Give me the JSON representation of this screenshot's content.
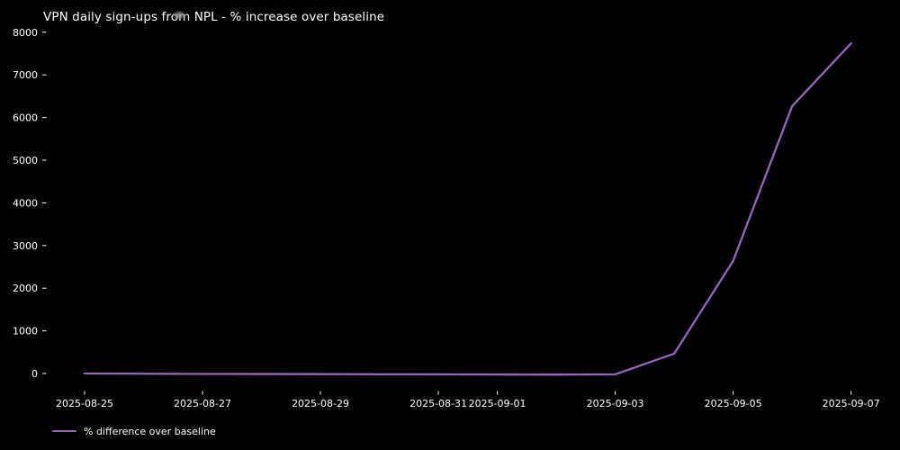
{
  "title": "VPN daily sign-ups from NPL - % increase over baseline",
  "legend": {
    "label": "% difference over baseline"
  },
  "colors": {
    "background": "#000000",
    "text": "#ffffff",
    "line": "#9467bd"
  },
  "chart_data": {
    "type": "line",
    "title": "VPN daily sign-ups from NPL - % increase over baseline",
    "xlabel": "",
    "ylabel": "",
    "x": [
      "2025-08-25",
      "2025-08-26",
      "2025-08-27",
      "2025-08-28",
      "2025-08-29",
      "2025-08-30",
      "2025-08-31",
      "2025-09-01",
      "2025-09-02",
      "2025-09-03",
      "2025-09-04",
      "2025-09-05",
      "2025-09-06",
      "2025-09-07"
    ],
    "series": [
      {
        "name": "% difference over baseline",
        "values": [
          0,
          -5,
          -10,
          -12,
          -15,
          -18,
          -20,
          -22,
          -25,
          -20,
          465,
          2640,
          6265,
          7740
        ]
      }
    ],
    "x_tick_labels": [
      "2025-08-25",
      "2025-08-27",
      "2025-08-29",
      "2025-08-31",
      "2025-09-01",
      "2025-09-03",
      "2025-09-05",
      "2025-09-07"
    ],
    "y_tick_labels": [
      "0",
      "1000",
      "2000",
      "3000",
      "4000",
      "5000",
      "6000",
      "7000",
      "8000"
    ],
    "ylim": [
      -400,
      8200
    ],
    "grid": false,
    "legend_position": "lower-left-outside",
    "background": "dark"
  }
}
